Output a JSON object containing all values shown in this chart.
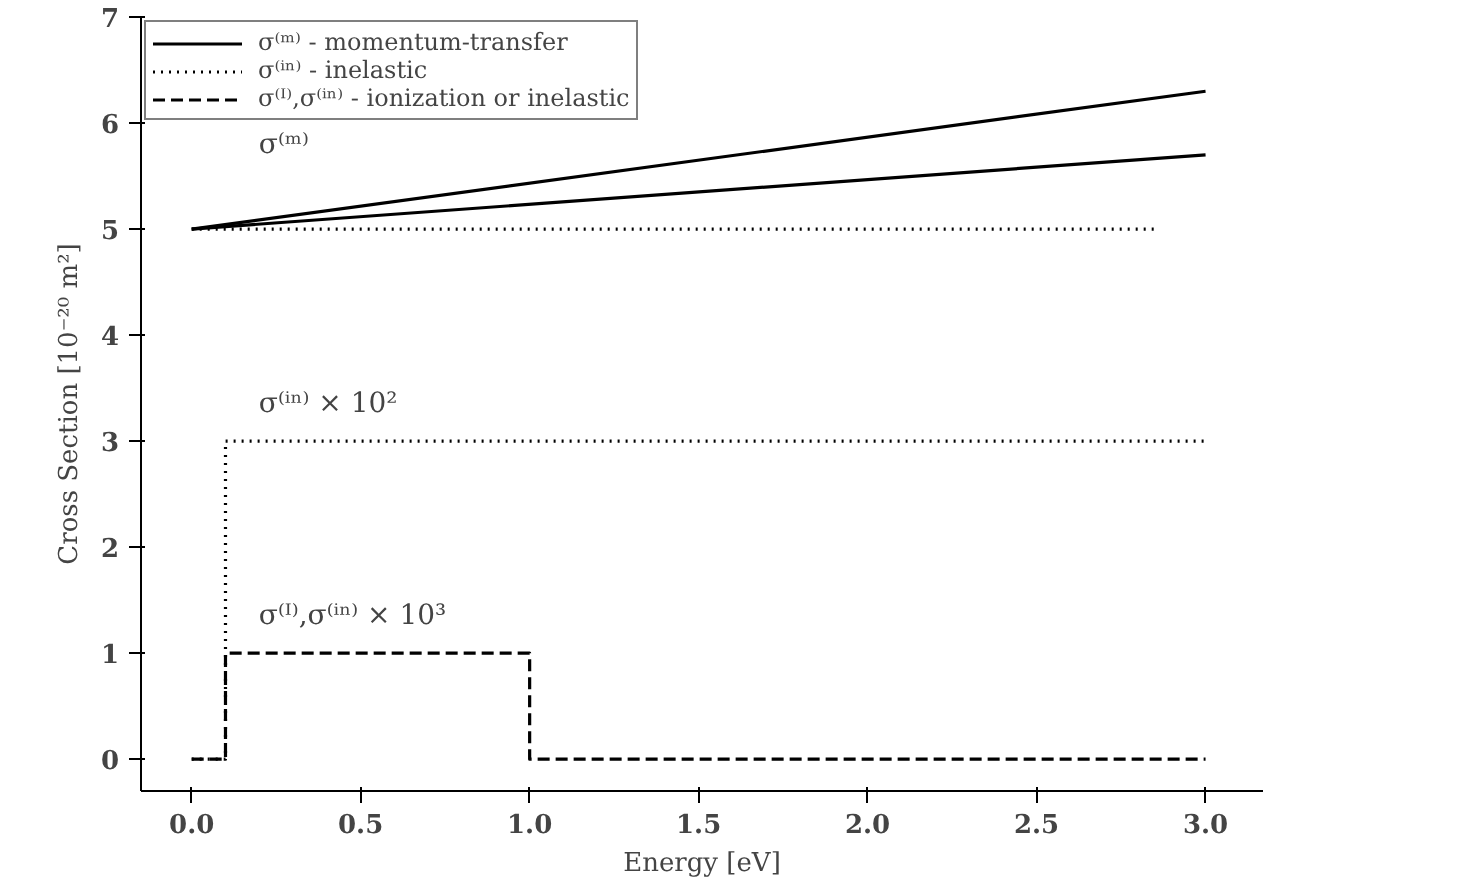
{
  "chart_data": {
    "type": "line",
    "xlabel": "Energy [eV]",
    "ylabel": "Cross Section [10⁻²⁰ m²]",
    "xlim": [
      -0.15,
      3.17
    ],
    "ylim": [
      -0.3,
      7.0
    ],
    "xticks": [
      {
        "value": 0,
        "label": "0.0"
      },
      0.5,
      {
        "value": 1,
        "label": "1.0"
      },
      1.5,
      {
        "value": 2,
        "label": "2.0"
      },
      2.5,
      {
        "value": 3,
        "label": "3.0"
      }
    ],
    "yticks": [
      0,
      1,
      2,
      3,
      4,
      5,
      6,
      7
    ],
    "grid": false,
    "legend": "top left",
    "marker": "none",
    "series": [
      {
        "name": "σ⁽ᵐ⁾ - momentum-transfer",
        "color": "#000000",
        "line_style": "solid",
        "x": [
          0,
          3
        ],
        "values": [
          5,
          6.3
        ]
      },
      {
        "color": "#000000",
        "line_style": "solid",
        "x": [
          0,
          3
        ],
        "values": [
          5,
          5.7
        ]
      },
      {
        "color": "#000000",
        "line_style": "dotted",
        "x": [
          0,
          2.85
        ],
        "values": [
          5,
          5
        ]
      },
      {
        "name": "σ⁽ⁱⁿ⁾ - inelastic",
        "type": "step",
        "color": "#000000",
        "line_style": "dotted",
        "x": [
          0,
          0.1,
          3
        ],
        "values": [
          0,
          3,
          3
        ]
      },
      {
        "name": "σ⁽ᴵ⁾,σ⁽ⁱⁿ⁾ - ionization or inelastic",
        "type": "step",
        "color": "#000000",
        "line_style": "dashed",
        "x": [
          0,
          0.1,
          1,
          3
        ],
        "values": [
          0,
          1,
          0,
          0
        ]
      }
    ],
    "annotations": [
      "σ⁽ᵐ⁾",
      "σ⁽ⁱⁿ⁾ × 10²",
      "σ⁽ᴵ⁾,σ⁽ⁱⁿ⁾ × 10³"
    ]
  }
}
